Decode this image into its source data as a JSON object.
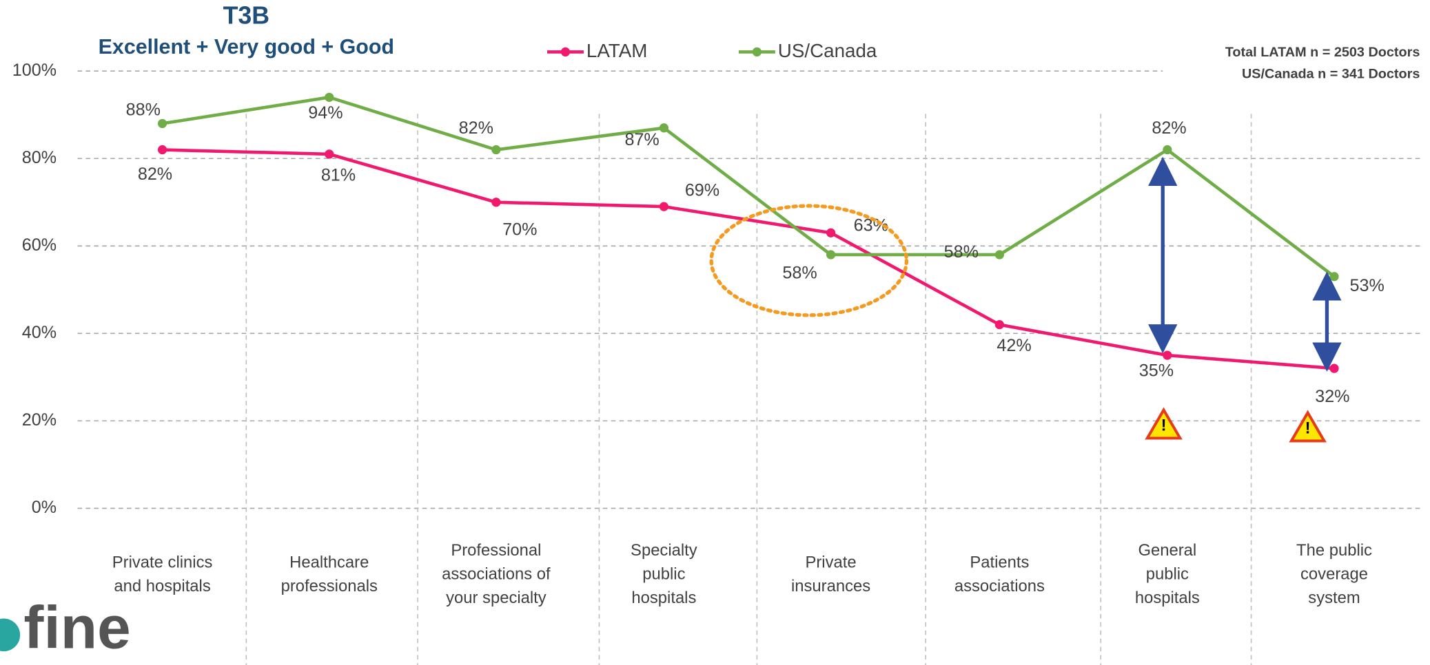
{
  "chart_data": {
    "type": "line",
    "title": "T3B",
    "subtitle": "Excellent + Very good + Good",
    "notes": [
      "Total LATAM  n = 2503 Doctors",
      "US/Canada n = 341 Doctors"
    ],
    "logo": "fine",
    "categories": [
      "Private clinics and hospitals",
      "Healthcare professionals",
      "Professional associations of your specialty",
      "Specialty public hospitals",
      "Private insurances",
      "Patients associations",
      "General public hospitals",
      "The public coverage system"
    ],
    "series": [
      {
        "name": "LATAM",
        "color": "#f0196e",
        "values": [
          82,
          81,
          70,
          69,
          63,
          42,
          35,
          32
        ],
        "value_labels": [
          "82%",
          "81%",
          "70%",
          "69%",
          "63%",
          "42%",
          "35%",
          "32%"
        ]
      },
      {
        "name": "US/Canada",
        "color": "#70ad47",
        "values": [
          88,
          94,
          82,
          87,
          58,
          58,
          82,
          53
        ],
        "value_labels": [
          "88%",
          "94%",
          "82%",
          "87%",
          "58%",
          "58%",
          "82%",
          "53%"
        ]
      }
    ],
    "ylim": [
      0,
      100
    ],
    "yticks": [
      {
        "value": 0,
        "label": "0%"
      },
      {
        "value": 20,
        "label": "20%"
      },
      {
        "value": 40,
        "label": "40%"
      },
      {
        "value": 60,
        "label": "60%"
      },
      {
        "value": 80,
        "label": "80%"
      },
      {
        "value": 100,
        "label": "100%"
      }
    ],
    "grid": true,
    "legend": "top"
  }
}
